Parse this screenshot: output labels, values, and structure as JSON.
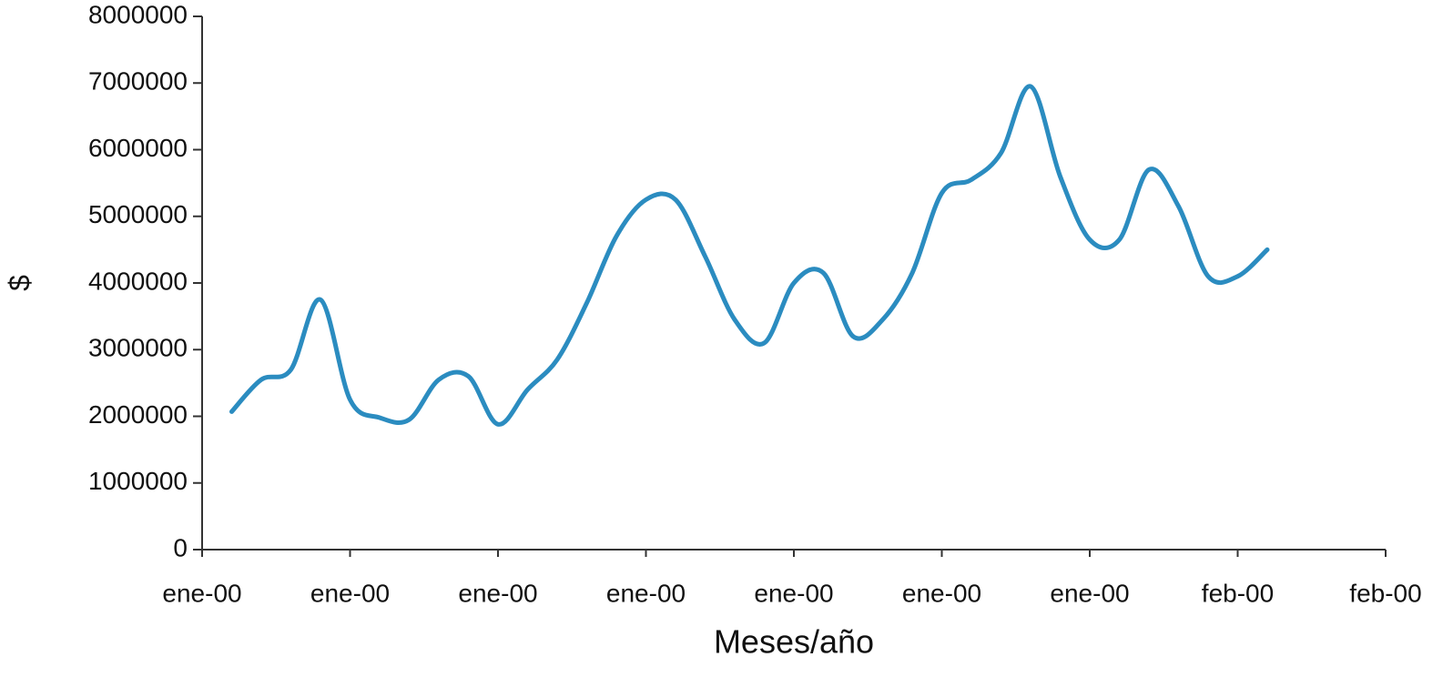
{
  "chart_data": {
    "type": "line",
    "x_label": "Meses/año",
    "y_label": "$",
    "x": [
      0.2,
      0.4,
      0.6,
      0.8,
      1.0,
      1.2,
      1.4,
      1.6,
      1.8,
      2.0,
      2.2,
      2.4,
      2.6,
      2.8,
      3.0,
      3.2,
      3.4,
      3.6,
      3.8,
      4.0,
      4.2,
      4.4,
      4.6,
      4.8,
      5.0,
      5.2,
      5.4,
      5.6,
      5.8,
      6.0,
      6.2,
      6.4,
      6.6,
      6.8,
      7.0,
      7.2
    ],
    "values": [
      2070000,
      2550000,
      2700000,
      3750000,
      2250000,
      1980000,
      1950000,
      2550000,
      2600000,
      1880000,
      2400000,
      2850000,
      3700000,
      4700000,
      5250000,
      5250000,
      4400000,
      3450000,
      3100000,
      4000000,
      4150000,
      3200000,
      3450000,
      4150000,
      5350000,
      5550000,
      5950000,
      6950000,
      5600000,
      4650000,
      4650000,
      5700000,
      5150000,
      4100000,
      4100000,
      4500000
    ],
    "color": "#2b8cc0",
    "xlim": [
      0,
      8
    ],
    "xticks": [
      {
        "value": 0,
        "label": "ene-00"
      },
      {
        "value": 1,
        "label": "ene-00"
      },
      {
        "value": 2,
        "label": "ene-00"
      },
      {
        "value": 3,
        "label": "ene-00"
      },
      {
        "value": 4,
        "label": "ene-00"
      },
      {
        "value": 5,
        "label": "ene-00"
      },
      {
        "value": 6,
        "label": "ene-00"
      },
      {
        "value": 7,
        "label": "feb-00"
      },
      {
        "value": 8,
        "label": "feb-00"
      }
    ],
    "ylim": [
      0,
      8000000
    ],
    "yticks": [
      0,
      1000000,
      2000000,
      3000000,
      4000000,
      5000000,
      6000000,
      7000000,
      8000000
    ],
    "grid": false
  }
}
